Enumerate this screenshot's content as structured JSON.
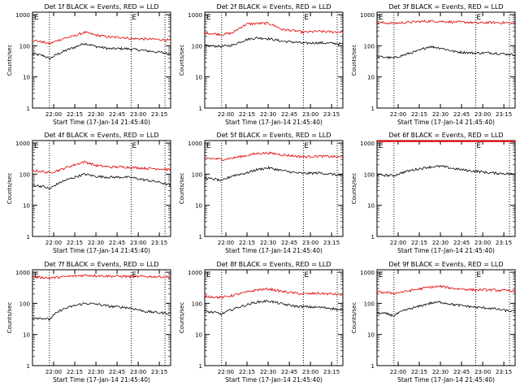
{
  "figure": {
    "xlabel": "Start Time (17-Jan-14 21:45:40)",
    "ylabel": "Counts/sec",
    "x_ticks": [
      "22:00",
      "22:15",
      "22:30",
      "22:45",
      "23:00",
      "23:15"
    ],
    "y_ticks": [
      "1",
      "10",
      "100",
      "1000"
    ],
    "series_colors": {
      "events": "#000000",
      "lld": "#e00000"
    }
  },
  "chart_data": [
    {
      "type": "line",
      "title": "Det 1f BLACK = Events, RED = LLD",
      "y_scale": "log",
      "ylim": [
        1,
        1200
      ],
      "x_ticks": [
        "22:00",
        "22:15",
        "22:30",
        "22:45",
        "23:00",
        "23:15"
      ],
      "dotted_lines_at": [
        "21:57",
        "22:55",
        "23:19"
      ],
      "marker_text": "E",
      "x": [
        "21:45",
        "21:53",
        "21:57",
        "22:05",
        "22:15",
        "22:22",
        "22:30",
        "22:40",
        "22:50",
        "22:55",
        "23:05",
        "23:15",
        "23:22"
      ],
      "series": [
        {
          "color": "#000000",
          "values": [
            55,
            48,
            38,
            60,
            90,
            120,
            95,
            80,
            82,
            78,
            70,
            62,
            55
          ]
        },
        {
          "color": "#e00000",
          "values": [
            150,
            130,
            115,
            160,
            210,
            270,
            220,
            190,
            185,
            170,
            165,
            160,
            150
          ]
        }
      ]
    },
    {
      "type": "line",
      "title": "Det 2f BLACK = Events, RED = LLD",
      "y_scale": "log",
      "ylim": [
        1,
        1200
      ],
      "x_ticks": [
        "22:00",
        "22:15",
        "22:30",
        "22:45",
        "23:00",
        "23:15"
      ],
      "dotted_lines_at": [
        "21:57",
        "22:55",
        "23:19"
      ],
      "marker_text": "E",
      "x": [
        "21:45",
        "21:53",
        "21:57",
        "22:05",
        "22:15",
        "22:22",
        "22:30",
        "22:40",
        "22:50",
        "22:55",
        "23:05",
        "23:15",
        "23:22"
      ],
      "series": [
        {
          "color": "#000000",
          "values": [
            100,
            98,
            95,
            105,
            160,
            180,
            170,
            140,
            130,
            120,
            125,
            120,
            115
          ]
        },
        {
          "color": "#e00000",
          "values": [
            260,
            240,
            230,
            260,
            500,
            520,
            530,
            330,
            300,
            270,
            290,
            280,
            280
          ]
        }
      ]
    },
    {
      "type": "line",
      "title": "Det 3f BLACK = Events, RED = LLD",
      "y_scale": "log",
      "ylim": [
        1,
        1200
      ],
      "x_ticks": [
        "22:00",
        "22:15",
        "22:30",
        "22:45",
        "23:00",
        "23:15"
      ],
      "dotted_lines_at": [
        "21:57",
        "22:55",
        "23:19"
      ],
      "marker_text": "E",
      "x": [
        "21:45",
        "21:53",
        "21:57",
        "22:05",
        "22:15",
        "22:22",
        "22:30",
        "22:40",
        "22:50",
        "22:55",
        "23:05",
        "23:15",
        "23:22"
      ],
      "series": [
        {
          "color": "#000000",
          "values": [
            45,
            42,
            40,
            52,
            70,
            95,
            85,
            65,
            60,
            58,
            60,
            55,
            52
          ]
        },
        {
          "color": "#e00000",
          "values": [
            560,
            540,
            530,
            560,
            600,
            620,
            610,
            580,
            570,
            540,
            560,
            550,
            540
          ]
        }
      ]
    },
    {
      "type": "line",
      "title": "Det 4f BLACK = Events, RED = LLD",
      "y_scale": "log",
      "ylim": [
        1,
        1200
      ],
      "x_ticks": [
        "22:00",
        "22:15",
        "22:30",
        "22:45",
        "23:00",
        "23:15"
      ],
      "dotted_lines_at": [
        "21:57",
        "22:55",
        "23:19"
      ],
      "marker_text": "E",
      "x": [
        "21:45",
        "21:53",
        "21:57",
        "22:05",
        "22:15",
        "22:22",
        "22:30",
        "22:40",
        "22:50",
        "22:55",
        "23:05",
        "23:15",
        "23:22"
      ],
      "series": [
        {
          "color": "#000000",
          "values": [
            45,
            40,
            33,
            55,
            80,
            100,
            85,
            80,
            80,
            78,
            65,
            55,
            45
          ]
        },
        {
          "color": "#e00000",
          "values": [
            130,
            120,
            110,
            140,
            200,
            250,
            190,
            170,
            170,
            165,
            155,
            150,
            140
          ]
        }
      ]
    },
    {
      "type": "line",
      "title": "Det 5f BLACK = Events, RED = LLD",
      "y_scale": "log",
      "ylim": [
        1,
        1200
      ],
      "x_ticks": [
        "22:00",
        "22:15",
        "22:30",
        "22:45",
        "23:00",
        "23:15"
      ],
      "dotted_lines_at": [
        "21:57",
        "22:55",
        "23:19"
      ],
      "marker_text": "E",
      "x": [
        "21:45",
        "21:53",
        "21:57",
        "22:05",
        "22:15",
        "22:22",
        "22:30",
        "22:40",
        "22:50",
        "22:55",
        "23:05",
        "23:15",
        "23:22"
      ],
      "series": [
        {
          "color": "#000000",
          "values": [
            75,
            68,
            60,
            90,
            110,
            140,
            160,
            130,
            110,
            105,
            110,
            100,
            90
          ]
        },
        {
          "color": "#e00000",
          "values": [
            330,
            310,
            300,
            330,
            400,
            460,
            480,
            420,
            380,
            360,
            380,
            370,
            350
          ]
        }
      ]
    },
    {
      "type": "line",
      "title": "Det 6f BLACK = Events, RED = LLD",
      "y_scale": "log",
      "ylim": [
        1,
        1200
      ],
      "x_ticks": [
        "22:00",
        "22:15",
        "22:30",
        "22:45",
        "23:00",
        "23:15"
      ],
      "dotted_lines_at": [
        "21:57",
        "22:55",
        "23:19"
      ],
      "marker_text": "E",
      "x": [
        "21:45",
        "21:53",
        "21:57",
        "22:05",
        "22:15",
        "22:22",
        "22:30",
        "22:40",
        "22:50",
        "22:55",
        "23:05",
        "23:15",
        "23:22"
      ],
      "series": [
        {
          "color": "#000000",
          "values": [
            95,
            92,
            90,
            120,
            150,
            170,
            180,
            150,
            130,
            125,
            110,
            105,
            100
          ]
        },
        {
          "color": "#e00000",
          "values": [
            1150,
            1150,
            1150,
            1150,
            1150,
            1150,
            1150,
            1150,
            1150,
            1150,
            1150,
            1150,
            1150
          ]
        }
      ]
    },
    {
      "type": "line",
      "title": "Det 7f BLACK = Events, RED = LLD",
      "y_scale": "log",
      "ylim": [
        1,
        1200
      ],
      "x_ticks": [
        "22:00",
        "22:15",
        "22:30",
        "22:45",
        "23:00",
        "23:15"
      ],
      "dotted_lines_at": [
        "21:57",
        "22:55",
        "23:19"
      ],
      "marker_text": "E",
      "x": [
        "21:45",
        "21:53",
        "21:57",
        "22:05",
        "22:15",
        "22:22",
        "22:30",
        "22:40",
        "22:50",
        "22:55",
        "23:05",
        "23:15",
        "23:22"
      ],
      "series": [
        {
          "color": "#000000",
          "values": [
            35,
            33,
            30,
            60,
            85,
            100,
            95,
            80,
            75,
            70,
            55,
            50,
            48
          ]
        },
        {
          "color": "#e00000",
          "values": [
            700,
            680,
            650,
            700,
            760,
            800,
            780,
            750,
            740,
            720,
            730,
            720,
            700
          ]
        }
      ]
    },
    {
      "type": "line",
      "title": "Det 8f BLACK = Events, RED = LLD",
      "y_scale": "log",
      "ylim": [
        1,
        1200
      ],
      "x_ticks": [
        "22:00",
        "22:15",
        "22:30",
        "22:45",
        "23:00",
        "23:15"
      ],
      "dotted_lines_at": [
        "21:57",
        "22:55",
        "23:19"
      ],
      "marker_text": "E",
      "x": [
        "21:45",
        "21:53",
        "21:57",
        "22:05",
        "22:15",
        "22:22",
        "22:30",
        "22:40",
        "22:50",
        "22:55",
        "23:05",
        "23:15",
        "23:22"
      ],
      "series": [
        {
          "color": "#000000",
          "values": [
            55,
            50,
            45,
            65,
            90,
            110,
            120,
            95,
            80,
            78,
            75,
            70,
            60
          ]
        },
        {
          "color": "#e00000",
          "values": [
            170,
            160,
            155,
            180,
            230,
            270,
            290,
            240,
            210,
            200,
            210,
            200,
            190
          ]
        }
      ]
    },
    {
      "type": "line",
      "title": "Det 9f BLACK = Events, RED = LLD",
      "y_scale": "log",
      "ylim": [
        1,
        1200
      ],
      "x_ticks": [
        "22:00",
        "22:15",
        "22:30",
        "22:45",
        "23:00",
        "23:15"
      ],
      "dotted_lines_at": [
        "21:57",
        "22:55",
        "23:19"
      ],
      "marker_text": "E",
      "x": [
        "21:45",
        "21:53",
        "21:57",
        "22:05",
        "22:15",
        "22:22",
        "22:30",
        "22:40",
        "22:50",
        "22:55",
        "23:05",
        "23:15",
        "23:22"
      ],
      "series": [
        {
          "color": "#000000",
          "values": [
            50,
            45,
            40,
            60,
            80,
            100,
            110,
            90,
            80,
            75,
            70,
            60,
            55
          ]
        },
        {
          "color": "#e00000",
          "values": [
            230,
            220,
            210,
            240,
            290,
            330,
            350,
            300,
            280,
            270,
            270,
            260,
            250
          ]
        }
      ]
    }
  ]
}
